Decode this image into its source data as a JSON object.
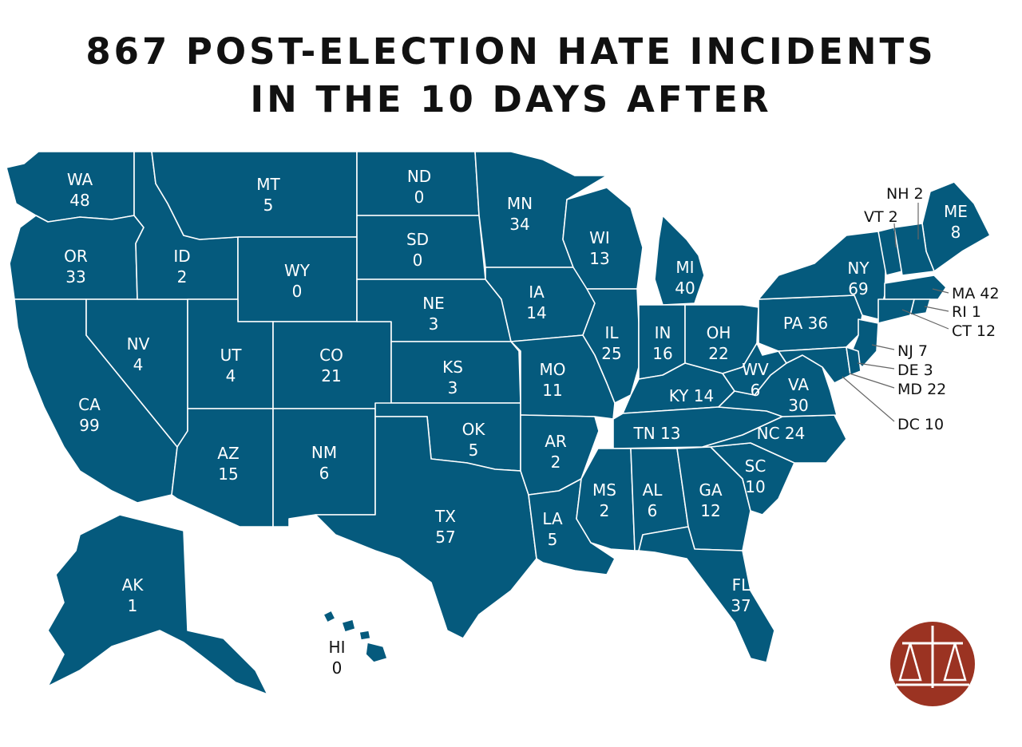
{
  "title": {
    "line1": "867 POST-ELECTION HATE INCIDENTS",
    "line2": "IN THE 10 DAYS AFTER"
  },
  "colors": {
    "state_fill": "#055a7d",
    "state_border": "#ffffff",
    "logo_fill": "#9b3322",
    "text_dark": "#111111"
  },
  "states": {
    "WA": {
      "abbr": "WA",
      "count": "48"
    },
    "OR": {
      "abbr": "OR",
      "count": "33"
    },
    "CA": {
      "abbr": "CA",
      "count": "99"
    },
    "NV": {
      "abbr": "NV",
      "count": "4"
    },
    "ID": {
      "abbr": "ID",
      "count": "2"
    },
    "MT": {
      "abbr": "MT",
      "count": "5"
    },
    "WY": {
      "abbr": "WY",
      "count": "0"
    },
    "UT": {
      "abbr": "UT",
      "count": "4"
    },
    "AZ": {
      "abbr": "AZ",
      "count": "15"
    },
    "CO": {
      "abbr": "CO",
      "count": "21"
    },
    "NM": {
      "abbr": "NM",
      "count": "6"
    },
    "ND": {
      "abbr": "ND",
      "count": "0"
    },
    "SD": {
      "abbr": "SD",
      "count": "0"
    },
    "NE": {
      "abbr": "NE",
      "count": "3"
    },
    "KS": {
      "abbr": "KS",
      "count": "3"
    },
    "OK": {
      "abbr": "OK",
      "count": "5"
    },
    "TX": {
      "abbr": "TX",
      "count": "57"
    },
    "MN": {
      "abbr": "MN",
      "count": "34"
    },
    "IA": {
      "abbr": "IA",
      "count": "14"
    },
    "MO": {
      "abbr": "MO",
      "count": "11"
    },
    "AR": {
      "abbr": "AR",
      "count": "2"
    },
    "LA": {
      "abbr": "LA",
      "count": "5"
    },
    "WI": {
      "abbr": "WI",
      "count": "13"
    },
    "IL": {
      "abbr": "IL",
      "count": "25"
    },
    "MI": {
      "abbr": "MI",
      "count": "40"
    },
    "IN": {
      "abbr": "IN",
      "count": "16"
    },
    "OH": {
      "abbr": "OH",
      "count": "22"
    },
    "KY": {
      "label": "KY 14"
    },
    "TN": {
      "label": "TN 13"
    },
    "MS": {
      "abbr": "MS",
      "count": "2"
    },
    "AL": {
      "abbr": "AL",
      "count": "6"
    },
    "GA": {
      "abbr": "GA",
      "count": "12"
    },
    "FL": {
      "abbr": "FL",
      "count": "37"
    },
    "SC": {
      "abbr": "SC",
      "count": "10"
    },
    "NC": {
      "label": "NC 24"
    },
    "VA": {
      "abbr": "VA",
      "count": "30"
    },
    "WV": {
      "abbr": "WV",
      "count": "6"
    },
    "PA": {
      "label": "PA 36"
    },
    "NY": {
      "abbr": "NY",
      "count": "69"
    },
    "ME": {
      "abbr": "ME",
      "count": "8"
    },
    "AK": {
      "abbr": "AK",
      "count": "1"
    },
    "HI": {
      "abbr": "HI",
      "count": "0"
    }
  },
  "callouts": {
    "NH": "NH 2",
    "VT": "VT 2",
    "MA": "MA 42",
    "RI": "RI 1",
    "CT": "CT 12",
    "NJ": "NJ 7",
    "DE": "DE 3",
    "MD": "MD 22",
    "DC": "DC 10"
  }
}
